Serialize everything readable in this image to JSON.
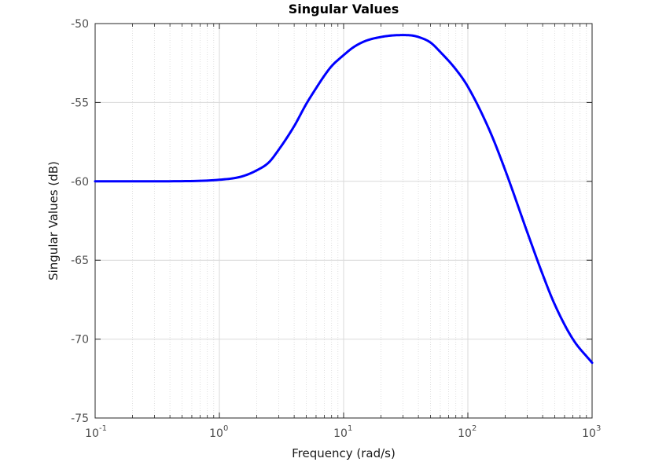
{
  "chart_data": {
    "type": "line",
    "title": "Singular Values",
    "xlabel": "Frequency (rad/s)",
    "ylabel": "Singular Values (dB)",
    "xscale": "log",
    "xlim": [
      0.1,
      1000
    ],
    "ylim": [
      -75,
      -50
    ],
    "xticks": [
      {
        "base": "10",
        "exp": "-1",
        "value": 0.1
      },
      {
        "base": "10",
        "exp": "0",
        "value": 1
      },
      {
        "base": "10",
        "exp": "1",
        "value": 10
      },
      {
        "base": "10",
        "exp": "2",
        "value": 100
      },
      {
        "base": "10",
        "exp": "3",
        "value": 1000
      }
    ],
    "yticks": [
      "-50",
      "-55",
      "-60",
      "-65",
      "-70",
      "-75"
    ],
    "grid": true,
    "minor_grid": true,
    "colors": {
      "line": "#0000ff",
      "grid": "#d9d9d9",
      "axis": "#262626"
    },
    "series": [
      {
        "x": [
          0.1,
          0.2,
          0.5,
          1,
          1.5,
          2,
          2.5,
          3,
          4,
          5,
          6,
          7,
          8,
          10,
          12,
          15,
          20,
          25,
          30,
          35,
          40,
          50,
          60,
          80,
          100,
          150,
          200,
          300,
          400,
          500,
          700,
          1000
        ],
        "y": [
          -60.0,
          -60.0,
          -59.99,
          -59.9,
          -59.7,
          -59.3,
          -58.8,
          -58.0,
          -56.5,
          -55.1,
          -54.1,
          -53.3,
          -52.7,
          -52.0,
          -51.5,
          -51.1,
          -50.85,
          -50.75,
          -50.73,
          -50.75,
          -50.85,
          -51.2,
          -51.8,
          -52.9,
          -54.0,
          -56.8,
          -59.3,
          -63.2,
          -65.9,
          -67.8,
          -70.0,
          -71.5
        ]
      }
    ]
  }
}
